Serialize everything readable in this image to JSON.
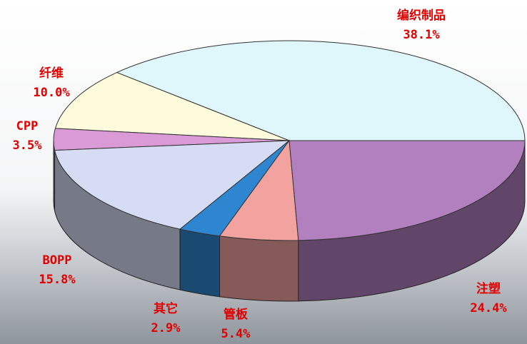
{
  "chart_data": {
    "type": "pie3d",
    "categories": [
      "编织制品",
      "纤维",
      "CPP",
      "BOPP",
      "其它",
      "管板",
      "注塑"
    ],
    "values": [
      38.1,
      10.0,
      3.5,
      15.8,
      2.9,
      5.4,
      24.4
    ],
    "value_labels": [
      "38.1%",
      "10.0%",
      "3.5%",
      "15.8%",
      "2.9%",
      "5.4%",
      "24.4%"
    ],
    "colors": [
      "#dff6fb",
      "#fdfbdc",
      "#d99ad6",
      "#d6dcf3",
      "#2f86d0",
      "#f2a3a0",
      "#b27fbf"
    ]
  }
}
